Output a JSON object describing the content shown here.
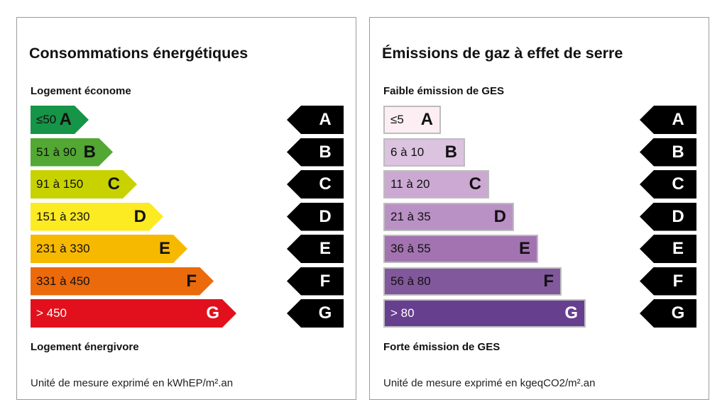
{
  "energy": {
    "title": "Consommations énergétiques",
    "top_label": "Logement économe",
    "bottom_label": "Logement énergivore",
    "unit": "Unité de mesure exprimé en kWhEP/m².an",
    "classes": [
      {
        "letter": "A",
        "range": "≤50",
        "color": "#169447",
        "text_color": "#111"
      },
      {
        "letter": "B",
        "range": "51 à 90",
        "color": "#52a832",
        "text_color": "#111"
      },
      {
        "letter": "C",
        "range": "91 à 150",
        "color": "#c8d200",
        "text_color": "#111"
      },
      {
        "letter": "D",
        "range": "151 à 230",
        "color": "#fcea23",
        "text_color": "#111"
      },
      {
        "letter": "E",
        "range": "231 à 330",
        "color": "#f7b900",
        "text_color": "#111"
      },
      {
        "letter": "F",
        "range": "331 à 450",
        "color": "#eb6a0c",
        "text_color": "#111"
      },
      {
        "letter": "G",
        "range": "> 450",
        "color": "#e2101d",
        "text_color": "#fff"
      }
    ]
  },
  "ges": {
    "title": "Émissions de gaz à effet de serre",
    "top_label": "Faible émission de GES",
    "bottom_label": "Forte émission de GES",
    "unit": "Unité de mesure exprimé en kgeqCO2/m².an",
    "classes": [
      {
        "letter": "A",
        "range": "≤5",
        "color": "#fceef3",
        "text_color": "#111"
      },
      {
        "letter": "B",
        "range": "6 à 10",
        "color": "#dcc3e0",
        "text_color": "#111"
      },
      {
        "letter": "C",
        "range": "11 à 20",
        "color": "#cca9d2",
        "text_color": "#111"
      },
      {
        "letter": "D",
        "range": "21 à 35",
        "color": "#b991c4",
        "text_color": "#111"
      },
      {
        "letter": "E",
        "range": "36 à 55",
        "color": "#a273b0",
        "text_color": "#111"
      },
      {
        "letter": "F",
        "range": "56 à 80",
        "color": "#82589c",
        "text_color": "#111"
      },
      {
        "letter": "G",
        "range": "> 80",
        "color": "#673f8f",
        "text_color": "#fff"
      }
    ]
  },
  "markers": [
    "A",
    "B",
    "C",
    "D",
    "E",
    "F",
    "G"
  ]
}
